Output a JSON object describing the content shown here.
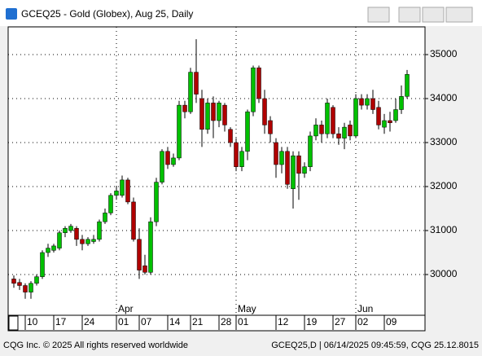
{
  "window": {
    "title": "GCEQ25 - Gold (Globex), Aug 25, Daily"
  },
  "footer": {
    "left": "CQG Inc. © 2025 All rights reserved worldwide",
    "right": "GCEQ25,D | 06/14/2025 09:45:59, CQG 25.12.8015"
  },
  "chart_data": {
    "type": "candlestick",
    "categories": [
      null,
      null,
      "10",
      null,
      null,
      null,
      null,
      "17",
      null,
      null,
      null,
      null,
      "24",
      null,
      null,
      null,
      null,
      null,
      "01",
      null,
      null,
      null,
      "07",
      null,
      null,
      null,
      null,
      "14",
      null,
      null,
      null,
      "21",
      null,
      null,
      null,
      null,
      "28",
      null,
      null,
      "01",
      null,
      null,
      null,
      null,
      null,
      null,
      "12",
      null,
      null,
      null,
      null,
      "19",
      null,
      null,
      null,
      null,
      "27",
      null,
      null,
      null,
      "02",
      null,
      null,
      null,
      null,
      "09",
      null,
      null,
      null,
      null
    ],
    "month_labels": [
      null,
      null,
      null,
      null,
      null,
      null,
      null,
      null,
      null,
      null,
      null,
      null,
      null,
      null,
      null,
      null,
      null,
      null,
      "Apr",
      null,
      null,
      null,
      null,
      null,
      null,
      null,
      null,
      null,
      null,
      null,
      null,
      null,
      null,
      null,
      null,
      null,
      null,
      null,
      null,
      "May",
      null,
      null,
      null,
      null,
      null,
      null,
      null,
      null,
      null,
      null,
      null,
      null,
      null,
      null,
      null,
      null,
      null,
      null,
      null,
      null,
      "Jun",
      null,
      null,
      null,
      null,
      null,
      null,
      null,
      null,
      null
    ],
    "open": [
      29900,
      29820,
      29750,
      29600,
      29800,
      29950,
      30500,
      30550,
      30600,
      30950,
      31000,
      31050,
      30800,
      30700,
      30750,
      30800,
      31200,
      31400,
      31800,
      31800,
      32150,
      31650,
      30800,
      30200,
      30050,
      31200,
      32100,
      32800,
      32500,
      32650,
      33850,
      33700,
      34600,
      34000,
      33300,
      33900,
      33500,
      33850,
      33300,
      33000,
      32450,
      32800,
      33700,
      34700,
      34000,
      33500,
      33000,
      32500,
      32800,
      31950,
      32700,
      32300,
      32450,
      33150,
      33400,
      33200,
      33800,
      33200,
      33100,
      33400,
      33150,
      34000,
      33850,
      34000,
      33800,
      33350,
      33500,
      33500,
      33750,
      34050
    ],
    "high": [
      29980,
      29900,
      29800,
      29850,
      30000,
      30550,
      30700,
      30700,
      31000,
      31100,
      31150,
      31100,
      30900,
      30850,
      30900,
      31250,
      31500,
      31850,
      32000,
      32250,
      32200,
      31750,
      31050,
      30450,
      31300,
      32200,
      32850,
      32900,
      32750,
      33950,
      33950,
      34700,
      35350,
      34200,
      34000,
      34050,
      33950,
      33900,
      33350,
      33100,
      32900,
      33750,
      34750,
      34750,
      34200,
      33600,
      33100,
      32900,
      32900,
      32800,
      32800,
      32550,
      33250,
      33550,
      33500,
      34000,
      33850,
      33350,
      33450,
      33500,
      34100,
      34100,
      34100,
      34200,
      33950,
      33650,
      33700,
      34000,
      34300,
      34650
    ],
    "low": [
      29700,
      29650,
      29450,
      29450,
      29750,
      29900,
      30400,
      30500,
      30550,
      30850,
      30950,
      30650,
      30550,
      30650,
      30700,
      30750,
      31150,
      31350,
      31700,
      31750,
      31600,
      30750,
      29900,
      30000,
      30000,
      31100,
      32050,
      32400,
      32450,
      32600,
      33550,
      33650,
      33900,
      32900,
      33200,
      33100,
      33350,
      33250,
      32900,
      32350,
      32350,
      32600,
      33600,
      33900,
      33200,
      33000,
      32200,
      32300,
      31950,
      31500,
      31700,
      32200,
      32350,
      33050,
      33000,
      33100,
      33100,
      32950,
      32850,
      33050,
      33100,
      33750,
      33750,
      33650,
      33300,
      33200,
      33250,
      33450,
      33650,
      34000
    ],
    "close": [
      29800,
      29750,
      29600,
      29800,
      29950,
      30500,
      30600,
      30650,
      30950,
      31050,
      31100,
      30800,
      30700,
      30800,
      30800,
      31200,
      31400,
      31800,
      31900,
      32150,
      31650,
      30800,
      30100,
      30050,
      31200,
      32100,
      32800,
      32500,
      32650,
      33850,
      33700,
      34600,
      34100,
      33300,
      33900,
      33500,
      33900,
      33400,
      33000,
      32450,
      32800,
      33700,
      34700,
      34000,
      33400,
      33200,
      32500,
      32800,
      32050,
      32700,
      32300,
      32450,
      33150,
      33400,
      33200,
      33900,
      33200,
      33100,
      33350,
      33150,
      34000,
      33850,
      34000,
      33750,
      33400,
      33500,
      33450,
      33750,
      34050,
      34550
    ],
    "up_color": "#00c000",
    "down_color": "#b00000",
    "ylim": [
      29074,
      35630
    ],
    "yticks": [
      30000,
      31000,
      32000,
      33000,
      34000,
      35000
    ],
    "grid": true
  }
}
